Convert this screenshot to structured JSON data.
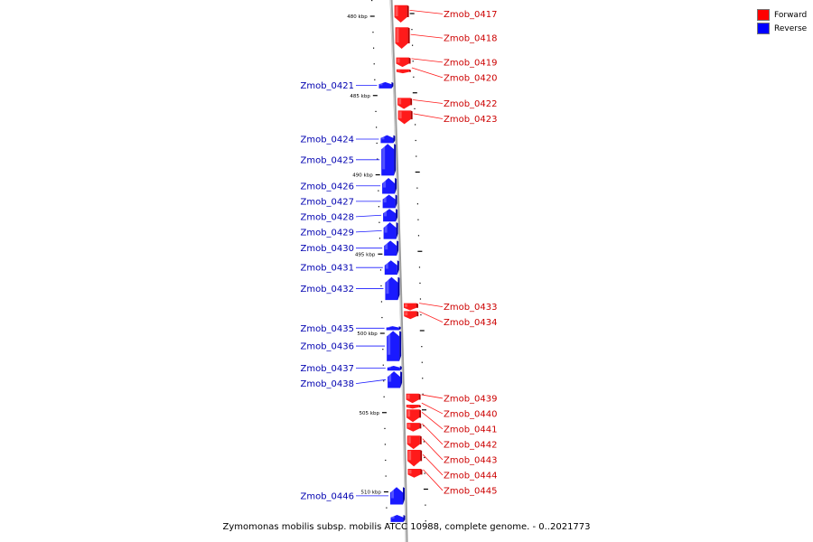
{
  "caption": "Zymomonas mobilis subsp. mobilis ATCC 10988, complete genome. - 0..2021773",
  "legend": [
    {
      "label": "Forward",
      "color": "#ff0000"
    },
    {
      "label": "Reverse",
      "color": "#0000ff"
    }
  ],
  "colors": {
    "forward": "#ff1a1a",
    "reverse": "#1a1aff",
    "axis": "#9a9a9a"
  },
  "ticks": [
    {
      "kbp": 480,
      "label": "480 kbp"
    },
    {
      "kbp": 485,
      "label": "485 kbp"
    },
    {
      "kbp": 490,
      "label": "490 kbp"
    },
    {
      "kbp": 495,
      "label": "495 kbp"
    },
    {
      "kbp": 500,
      "label": "500 kbp"
    },
    {
      "kbp": 505,
      "label": "505 kbp"
    },
    {
      "kbp": 510,
      "label": "510 kbp"
    }
  ],
  "genes": [
    {
      "name": "Zmob_0417",
      "strand": "forward",
      "start": 479.3,
      "end": 480.4
    },
    {
      "name": "Zmob_0418",
      "strand": "forward",
      "start": 480.7,
      "end": 482.05
    },
    {
      "name": "Zmob_0419",
      "strand": "forward",
      "start": 482.6,
      "end": 483.2
    },
    {
      "name": "Zmob_0420",
      "strand": "forward",
      "start": 483.35,
      "end": 483.6
    },
    {
      "name": "Zmob_0421",
      "strand": "reverse",
      "start": 484.15,
      "end": 484.55
    },
    {
      "name": "Zmob_0422",
      "strand": "forward",
      "start": 485.15,
      "end": 485.85
    },
    {
      "name": "Zmob_0423",
      "strand": "forward",
      "start": 485.95,
      "end": 486.8
    },
    {
      "name": "Zmob_0424",
      "strand": "reverse",
      "start": 487.5,
      "end": 488.0
    },
    {
      "name": "Zmob_0425",
      "strand": "reverse",
      "start": 488.05,
      "end": 490.05
    },
    {
      "name": "Zmob_0426",
      "strand": "reverse",
      "start": 490.2,
      "end": 491.2
    },
    {
      "name": "Zmob_0427",
      "strand": "reverse",
      "start": 491.25,
      "end": 492.1
    },
    {
      "name": "Zmob_0428",
      "strand": "reverse",
      "start": 492.15,
      "end": 492.95
    },
    {
      "name": "Zmob_0429",
      "strand": "reverse",
      "start": 493.0,
      "end": 494.05
    },
    {
      "name": "Zmob_0430",
      "strand": "reverse",
      "start": 494.15,
      "end": 495.1
    },
    {
      "name": "Zmob_0431",
      "strand": "reverse",
      "start": 495.4,
      "end": 496.3
    },
    {
      "name": "Zmob_0432",
      "strand": "reverse",
      "start": 496.45,
      "end": 497.9
    },
    {
      "name": "Zmob_0433",
      "strand": "forward",
      "start": 498.1,
      "end": 498.55
    },
    {
      "name": "Zmob_0434",
      "strand": "forward",
      "start": 498.6,
      "end": 499.1
    },
    {
      "name": "Zmob_0435",
      "strand": "reverse",
      "start": 499.55,
      "end": 499.8
    },
    {
      "name": "Zmob_0436",
      "strand": "reverse",
      "start": 499.85,
      "end": 501.75
    },
    {
      "name": "Zmob_0437",
      "strand": "reverse",
      "start": 502.05,
      "end": 502.35
    },
    {
      "name": "Zmob_0438",
      "strand": "reverse",
      "start": 502.4,
      "end": 503.45
    },
    {
      "name": "Zmob_0439",
      "strand": "forward",
      "start": 503.8,
      "end": 504.4
    },
    {
      "name": "Zmob_0440",
      "strand": "forward",
      "start": 504.5,
      "end": 504.75
    },
    {
      "name": "Zmob_0441",
      "strand": "forward",
      "start": 504.8,
      "end": 505.6
    },
    {
      "name": "Zmob_0442",
      "strand": "forward",
      "start": 505.65,
      "end": 506.2
    },
    {
      "name": "Zmob_0443",
      "strand": "forward",
      "start": 506.45,
      "end": 507.3
    },
    {
      "name": "Zmob_0444",
      "strand": "forward",
      "start": 507.35,
      "end": 508.4
    },
    {
      "name": "Zmob_0445",
      "strand": "forward",
      "start": 508.55,
      "end": 509.1
    },
    {
      "name": "Zmob_0446",
      "strand": "reverse",
      "start": 509.7,
      "end": 510.8
    },
    {
      "name": "",
      "strand": "reverse",
      "start": 511.45,
      "end": 511.9
    }
  ]
}
